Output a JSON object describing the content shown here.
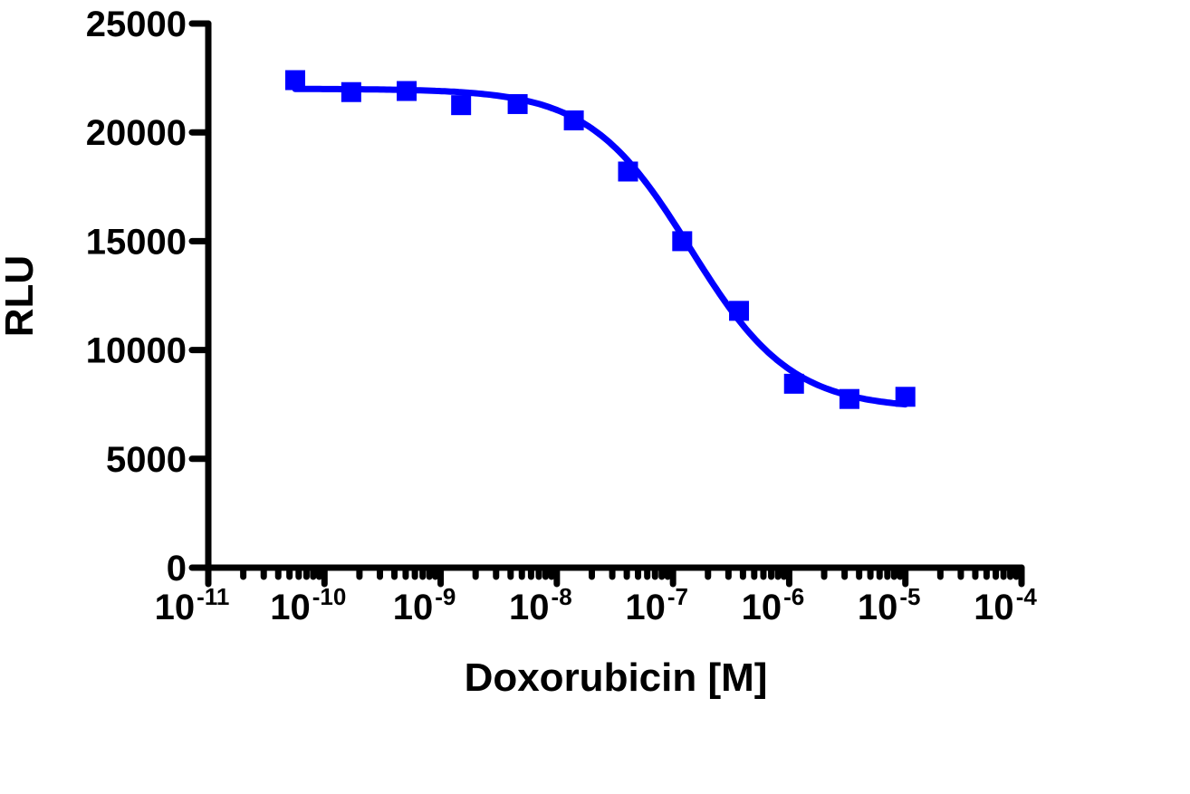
{
  "chart_data": {
    "type": "scatter",
    "title": "",
    "xlabel": "Doxorubicin [M]",
    "ylabel": "RLU",
    "x_scale": "log",
    "xlim": [
      1e-11,
      0.0001
    ],
    "ylim": [
      0,
      25000
    ],
    "grid": false,
    "legend": "none",
    "x_tick_labels": [
      {
        "base": "10",
        "exp": "-11",
        "value": -11
      },
      {
        "base": "10",
        "exp": "-10",
        "value": -10
      },
      {
        "base": "10",
        "exp": "-9",
        "value": -9
      },
      {
        "base": "10",
        "exp": "-8",
        "value": -8
      },
      {
        "base": "10",
        "exp": "-7",
        "value": -7
      },
      {
        "base": "10",
        "exp": "-6",
        "value": -6
      },
      {
        "base": "10",
        "exp": "-5",
        "value": -5
      },
      {
        "base": "10",
        "exp": "-4",
        "value": -4
      }
    ],
    "y_tick_labels": [
      "0",
      "5000",
      "10000",
      "15000",
      "20000",
      "25000"
    ],
    "y_ticks": [
      0,
      5000,
      10000,
      15000,
      20000,
      25000
    ],
    "series": [
      {
        "name": "Doxorubicin",
        "color": "#0000ff",
        "marker": "square",
        "x": [
          5.6e-11,
          1.7e-10,
          5.1e-10,
          1.5e-09,
          4.6e-09,
          1.4e-08,
          4.1e-08,
          1.2e-07,
          3.7e-07,
          1.1e-06,
          3.3e-06,
          1e-05
        ],
        "y": [
          22400,
          21850,
          21900,
          21250,
          21300,
          20550,
          18200,
          15000,
          11800,
          8450,
          7750,
          7850
        ]
      }
    ],
    "fit": {
      "model": "4PL",
      "color": "#0000ff",
      "top": 22000,
      "bottom": 7300,
      "log_ic50": -6.85,
      "hill": 1.0,
      "x_start": 5.6e-11,
      "x_end": 1e-05
    }
  }
}
